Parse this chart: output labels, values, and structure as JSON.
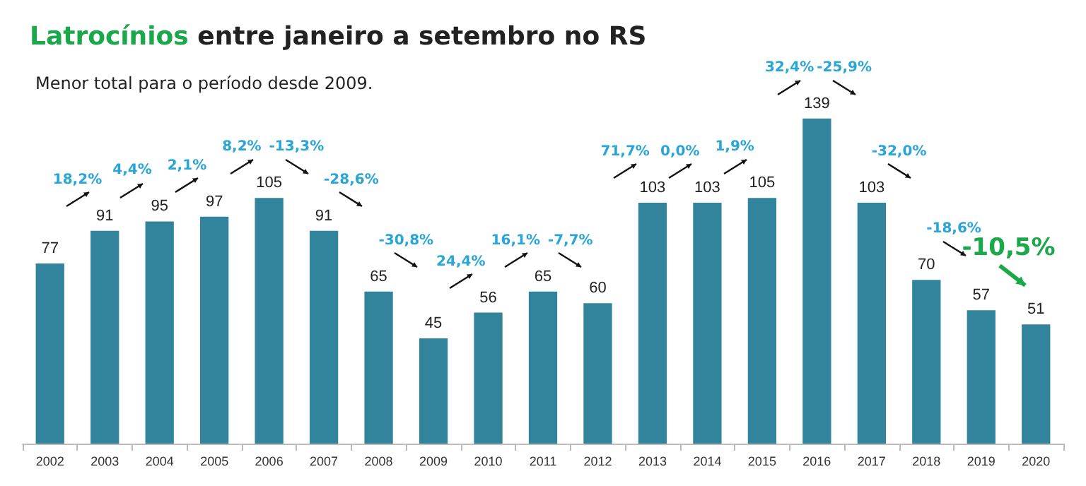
{
  "chart_data": {
    "type": "bar",
    "title": "Latrocínios entre janeiro a setembro no RS",
    "subtitle": "Menor total para o período desde 2009.",
    "categories": [
      "2002",
      "2003",
      "2004",
      "2005",
      "2006",
      "2007",
      "2008",
      "2009",
      "2010",
      "2011",
      "2012",
      "2013",
      "2014",
      "2015",
      "2016",
      "2017",
      "2018",
      "2019",
      "2020"
    ],
    "values": [
      77,
      91,
      95,
      97,
      105,
      91,
      65,
      45,
      56,
      65,
      60,
      103,
      103,
      105,
      139,
      103,
      70,
      57,
      51
    ],
    "color": "#31849b",
    "data_labels": true,
    "annotations": [
      "18,2%",
      "4,4%",
      "2,1%",
      "8,2%",
      "-13,3%",
      "-28,6%",
      "-30,8%",
      "24,4%",
      "16,1%",
      "-7,7%",
      "71,7%",
      "0,0%",
      "1,9%",
      "32,4%",
      "-25,9%",
      "-32,0%",
      "-18,6%",
      "-10,5%"
    ]
  }
}
